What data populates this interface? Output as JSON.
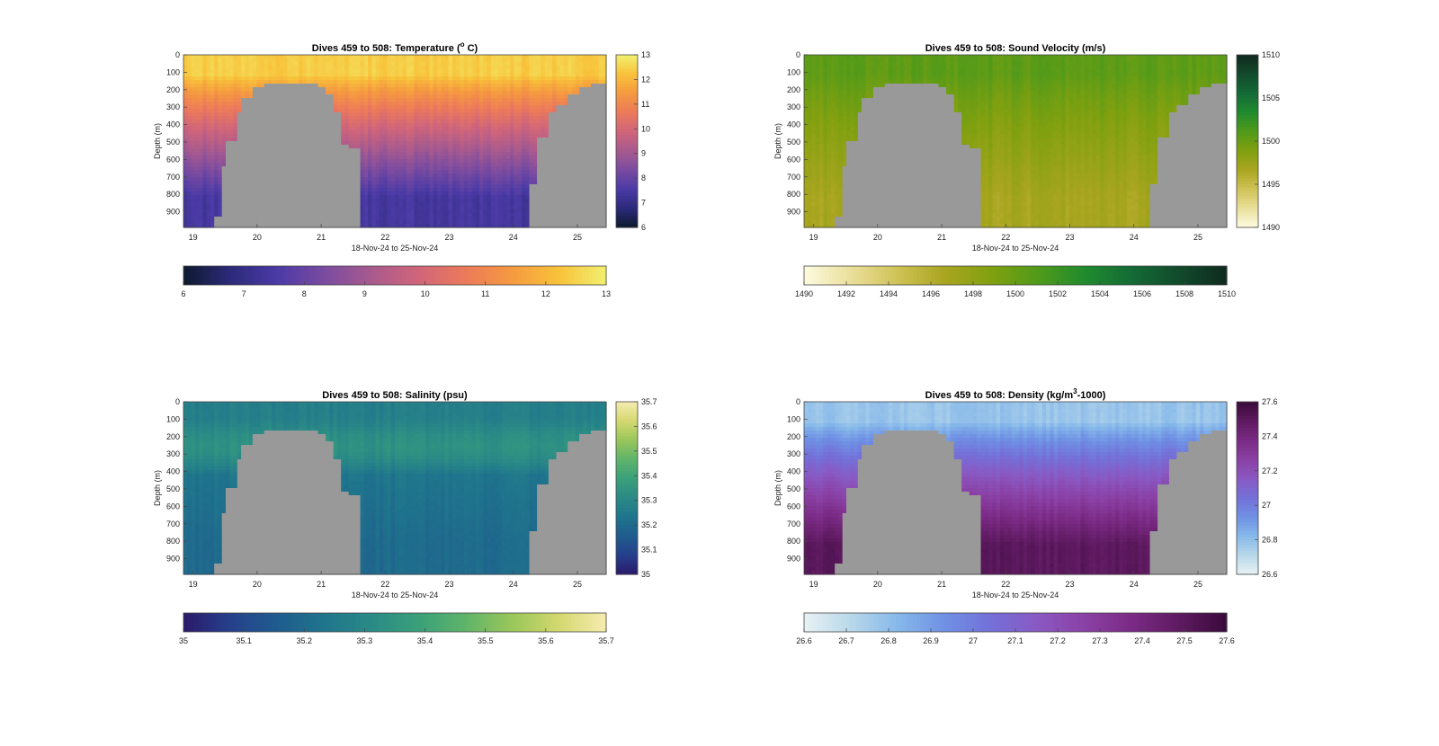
{
  "chart_data": [
    {
      "type": "heatmap",
      "title": "Dives 459 to 508: Temperature (",
      "title_sup": "o",
      "title_tail": " C)",
      "xlabel": "18-Nov-24 to 25-Nov-24",
      "ylabel": "Depth (m)",
      "xticks": [
        "19",
        "20",
        "21",
        "22",
        "23",
        "24",
        "25"
      ],
      "xtick_values": [
        19,
        20,
        21,
        22,
        23,
        24,
        25
      ],
      "xlim": [
        18.85,
        25.45
      ],
      "yticks": [
        "0",
        "100",
        "200",
        "300",
        "400",
        "500",
        "600",
        "700",
        "800",
        "900"
      ],
      "ytick_values": [
        0,
        100,
        200,
        300,
        400,
        500,
        600,
        700,
        800,
        900
      ],
      "ylim": [
        0,
        990
      ],
      "surface": 12.4,
      "deep": 7.4,
      "cmap": [
        "#0d1a2e",
        "#2c2a7a",
        "#4b3aa6",
        "#7a4ba0",
        "#a85a8e",
        "#d0657a",
        "#ec7a5a",
        "#f59a40",
        "#f8c23a",
        "#f1f070"
      ],
      "colorbar_right": {
        "min": 6,
        "max": 13,
        "ticks": [
          "6",
          "7",
          "8",
          "9",
          "10",
          "11",
          "12",
          "13"
        ],
        "tick_values": [
          6,
          7,
          8,
          9,
          10,
          11,
          12,
          13
        ]
      },
      "colorbar_bottom": {
        "min": 6,
        "max": 13,
        "ticks": [
          "6",
          "7",
          "8",
          "9",
          "10",
          "11",
          "12",
          "13"
        ],
        "tick_values": [
          6,
          7,
          8,
          9,
          10,
          11,
          12,
          13
        ]
      }
    },
    {
      "type": "heatmap",
      "title": "Dives 459 to 508: Sound Velocity (m/s)",
      "xlabel": "18-Nov-24 to 25-Nov-24",
      "ylabel": "Depth (m)",
      "xticks": [
        "19",
        "20",
        "21",
        "22",
        "23",
        "24",
        "25"
      ],
      "xtick_values": [
        19,
        20,
        21,
        22,
        23,
        24,
        25
      ],
      "xlim": [
        18.85,
        25.45
      ],
      "yticks": [
        "0",
        "100",
        "200",
        "300",
        "400",
        "500",
        "600",
        "700",
        "800",
        "900"
      ],
      "ytick_values": [
        0,
        100,
        200,
        300,
        400,
        500,
        600,
        700,
        800,
        900
      ],
      "ylim": [
        0,
        990
      ],
      "surface": 1500.5,
      "deep": 1496.8,
      "cmap": [
        "#fdfbe0",
        "#eadf9a",
        "#cfc256",
        "#a9a51f",
        "#80a010",
        "#4f9a1a",
        "#1f8a2e",
        "#146a36",
        "#124a2c",
        "#0f2a1e"
      ],
      "colorbar_right": {
        "min": 1490,
        "max": 1510,
        "ticks": [
          "1490",
          "1495",
          "1500",
          "1505",
          "1510"
        ],
        "tick_values": [
          1490,
          1495,
          1500,
          1505,
          1510
        ]
      },
      "colorbar_bottom": {
        "min": 1490,
        "max": 1510,
        "ticks": [
          "1490",
          "1492",
          "1494",
          "1496",
          "1498",
          "1500",
          "1502",
          "1504",
          "1506",
          "1508",
          "1510"
        ],
        "tick_values": [
          1490,
          1492,
          1494,
          1496,
          1498,
          1500,
          1502,
          1504,
          1506,
          1508,
          1510
        ]
      }
    },
    {
      "type": "heatmap",
      "title": "Dives 459 to 508: Salinity (psu)",
      "xlabel": "18-Nov-24 to 25-Nov-24",
      "ylabel": "Depth (m)",
      "xticks": [
        "19",
        "20",
        "21",
        "22",
        "23",
        "24",
        "25"
      ],
      "xtick_values": [
        19,
        20,
        21,
        22,
        23,
        24,
        25
      ],
      "xlim": [
        18.85,
        25.45
      ],
      "yticks": [
        "0",
        "100",
        "200",
        "300",
        "400",
        "500",
        "600",
        "700",
        "800",
        "900"
      ],
      "ytick_values": [
        0,
        100,
        200,
        300,
        400,
        500,
        600,
        700,
        800,
        900
      ],
      "ylim": [
        0,
        990
      ],
      "surface": 35.27,
      "deep": 35.2,
      "mid": 35.4,
      "cmap": [
        "#2a1a6a",
        "#26408c",
        "#1f5c8e",
        "#1f758c",
        "#2a8a86",
        "#3aa07a",
        "#5fb46a",
        "#9ac65a",
        "#d4d870",
        "#f6ecb0"
      ],
      "colorbar_right": {
        "min": 35,
        "max": 35.7,
        "ticks": [
          "35",
          "35.1",
          "35.2",
          "35.3",
          "35.4",
          "35.5",
          "35.6",
          "35.7"
        ],
        "tick_values": [
          35,
          35.1,
          35.2,
          35.3,
          35.4,
          35.5,
          35.6,
          35.7
        ]
      },
      "colorbar_bottom": {
        "min": 35,
        "max": 35.7,
        "ticks": [
          "35",
          "35.1",
          "35.2",
          "35.3",
          "35.4",
          "35.5",
          "35.6",
          "35.7"
        ],
        "tick_values": [
          35,
          35.1,
          35.2,
          35.3,
          35.4,
          35.5,
          35.6,
          35.7
        ]
      }
    },
    {
      "type": "heatmap",
      "title": "Dives 459 to 508: Density (kg/m",
      "title_sup": "3",
      "title_tail": "-1000)",
      "xlabel": "18-Nov-24 to 25-Nov-24",
      "ylabel": "Depth (m)",
      "xticks": [
        "19",
        "20",
        "21",
        "22",
        "23",
        "24",
        "25"
      ],
      "xtick_values": [
        19,
        20,
        21,
        22,
        23,
        24,
        25
      ],
      "xlim": [
        18.85,
        25.45
      ],
      "yticks": [
        "0",
        "100",
        "200",
        "300",
        "400",
        "500",
        "600",
        "700",
        "800",
        "900"
      ],
      "ytick_values": [
        0,
        100,
        200,
        300,
        400,
        500,
        600,
        700,
        800,
        900
      ],
      "ylim": [
        0,
        990
      ],
      "surface": 26.78,
      "deep": 27.5,
      "cmap": [
        "#e8f2f4",
        "#b8d8ea",
        "#86b8ea",
        "#6f90e4",
        "#7470d8",
        "#8a58c2",
        "#8a40a4",
        "#7a2a84",
        "#5e1a60",
        "#3a0a3a"
      ],
      "colorbar_right": {
        "min": 26.6,
        "max": 27.6,
        "ticks": [
          "26.6",
          "26.8",
          "27",
          "27.2",
          "27.4",
          "27.6"
        ],
        "tick_values": [
          26.6,
          26.8,
          27,
          27.2,
          27.4,
          27.6
        ]
      },
      "colorbar_bottom": {
        "min": 26.6,
        "max": 27.6,
        "ticks": [
          "26.6",
          "26.7",
          "26.8",
          "26.9",
          "27",
          "27.1",
          "27.2",
          "27.3",
          "27.4",
          "27.5",
          "27.6"
        ],
        "tick_values": [
          26.6,
          26.7,
          26.8,
          26.9,
          27,
          27.1,
          27.2,
          27.3,
          27.4,
          27.5,
          27.6
        ]
      }
    }
  ]
}
